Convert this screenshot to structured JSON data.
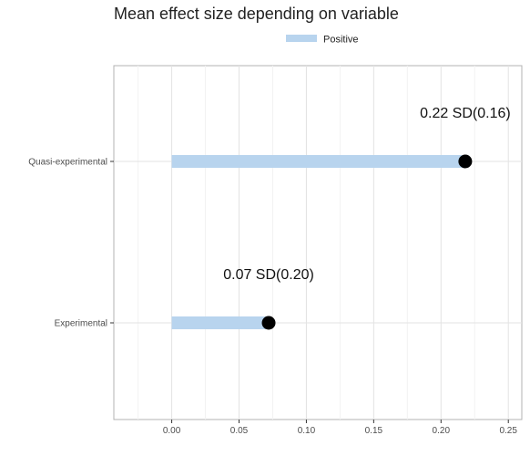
{
  "chart_data": {
    "type": "bar",
    "orientation": "horizontal",
    "title": "Mean effect size depending on variable",
    "xlabel": "",
    "ylabel": "",
    "categories": [
      "Quasi-experimental",
      "Experimental"
    ],
    "series": [
      {
        "name": "Positive",
        "values": [
          0.218,
          0.072
        ],
        "color": "#b8d4ee"
      }
    ],
    "point_color": "#000000",
    "data_labels": [
      "0.22 SD(0.16)",
      "0.07 SD(0.20)"
    ],
    "xlim": [
      -0.043,
      0.26
    ],
    "x_ticks": [
      0.0,
      0.05,
      0.1,
      0.15,
      0.2,
      0.25
    ],
    "x_tick_labels": [
      "0.00",
      "0.05",
      "0.10",
      "0.15",
      "0.20",
      "0.25"
    ],
    "grid": true,
    "legend_position": "top"
  }
}
